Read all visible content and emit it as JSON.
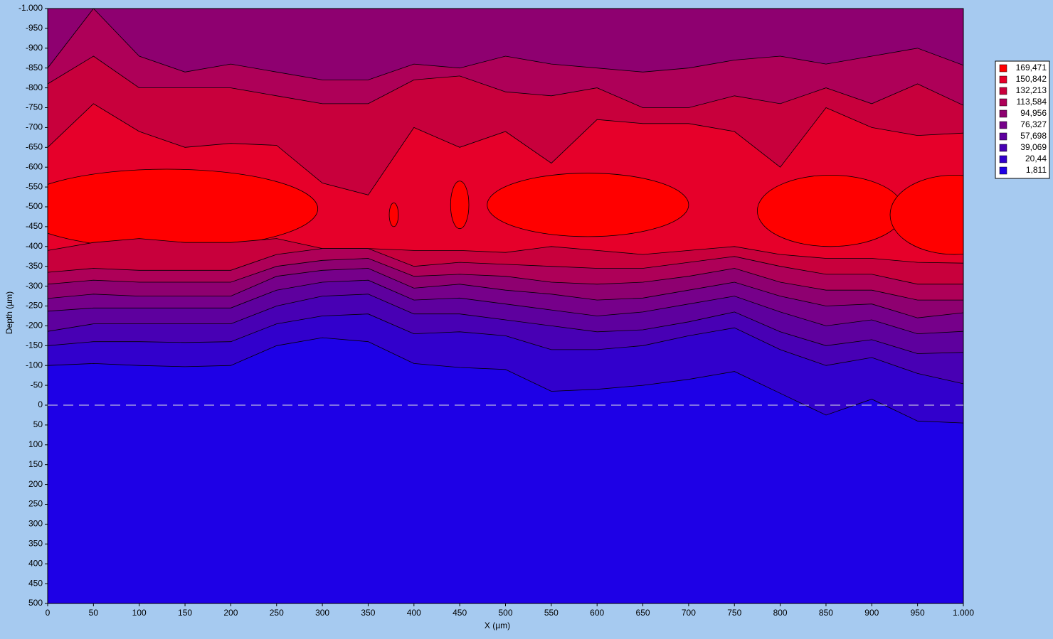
{
  "chart_data": {
    "type": "contour",
    "xlabel": "X (µm)",
    "ylabel": "Depth (µm)",
    "xlim": [
      0,
      1000
    ],
    "ylim": [
      -1000,
      500
    ],
    "xticks": [
      0,
      50,
      100,
      150,
      200,
      250,
      300,
      350,
      400,
      450,
      500,
      550,
      600,
      650,
      700,
      750,
      800,
      850,
      900,
      950,
      {
        "value": 1000,
        "label": "1.000"
      }
    ],
    "yticks": [
      {
        "value": -1000,
        "label": "-1.000"
      },
      -950,
      -900,
      -850,
      -800,
      -750,
      -700,
      -650,
      -600,
      -550,
      -500,
      -450,
      -400,
      -350,
      -300,
      -250,
      -200,
      -150,
      -100,
      -50,
      0,
      50,
      100,
      150,
      200,
      250,
      300,
      350,
      400,
      450,
      500
    ],
    "levels": [
      {
        "value": 169.471,
        "label": "169,471",
        "color": "#ff0000"
      },
      {
        "value": 150.842,
        "label": "150,842",
        "color": "#e6002a"
      },
      {
        "value": 132.213,
        "label": "132,213",
        "color": "#c8003c"
      },
      {
        "value": 113.584,
        "label": "113,584",
        "color": "#ae0058"
      },
      {
        "value": 94.956,
        "label": "94,956",
        "color": "#8e0070"
      },
      {
        "value": 76.327,
        "label": "76,327",
        "color": "#76008a"
      },
      {
        "value": 57.698,
        "label": "57,698",
        "color": "#5e009e"
      },
      {
        "value": 39.069,
        "label": "39,069",
        "color": "#4800b4"
      },
      {
        "value": 20.44,
        "label": "20,44",
        "color": "#3200cc"
      },
      {
        "value": 1.811,
        "label": "1,811",
        "color": "#1e00e6"
      }
    ],
    "background_band": 94.956,
    "x": [
      0,
      50,
      100,
      150,
      200,
      250,
      300,
      350,
      400,
      450,
      500,
      550,
      600,
      650,
      700,
      750,
      800,
      850,
      900,
      950,
      1000
    ],
    "contours": [
      {
        "band": 113.584,
        "depth": [
          -850,
          -1000,
          -880,
          -840,
          -860,
          -840,
          -820,
          -820,
          -860,
          -850,
          -880,
          -860,
          -850,
          -840,
          -850,
          -870,
          -880,
          -860,
          -880,
          -900,
          -857
        ]
      },
      {
        "band": 132.213,
        "depth": [
          -810,
          -880,
          -800,
          -800,
          -800,
          -780,
          -760,
          -760,
          -820,
          -830,
          -790,
          -780,
          -800,
          -750,
          -750,
          -780,
          -760,
          -800,
          -760,
          -810,
          -756
        ]
      },
      {
        "band": 150.842,
        "depth": [
          -650,
          -760,
          -690,
          -650,
          -660,
          -655,
          -560,
          -530,
          -700,
          -650,
          -690,
          -610,
          -720,
          -710,
          -710,
          -690,
          -600,
          -750,
          -700,
          -680,
          -686
        ]
      },
      {
        "band": 132.213,
        "depth": [
          -390,
          -410,
          -420,
          -410,
          -410,
          -420,
          -395,
          -395,
          -390,
          -390,
          -385,
          -400,
          -390,
          -380,
          -390,
          -400,
          -380,
          -370,
          -370,
          -360,
          -358
        ]
      },
      {
        "band": 113.584,
        "depth": [
          -335,
          -345,
          -340,
          -340,
          -340,
          -380,
          -395,
          -395,
          -350,
          -360,
          -355,
          -350,
          -345,
          -345,
          -360,
          -375,
          -350,
          -330,
          -330,
          -305,
          -305
        ]
      },
      {
        "band": 94.956,
        "depth": [
          -305,
          -315,
          -310,
          -310,
          -310,
          -350,
          -365,
          -370,
          -325,
          -330,
          -325,
          -310,
          -305,
          -310,
          -325,
          -345,
          -310,
          -290,
          -290,
          -265,
          -265
        ]
      },
      {
        "band": 76.327,
        "depth": [
          -269,
          -280,
          -275,
          -275,
          -275,
          -325,
          -340,
          -345,
          -295,
          -305,
          -290,
          -280,
          -265,
          -270,
          -290,
          -310,
          -275,
          -250,
          -255,
          -220,
          -233
        ]
      },
      {
        "band": 57.698,
        "depth": [
          -237,
          -245,
          -245,
          -245,
          -245,
          -290,
          -310,
          -315,
          -265,
          -270,
          -255,
          -240,
          -225,
          -235,
          -255,
          -275,
          -235,
          -200,
          -215,
          -180,
          -186
        ]
      },
      {
        "band": 39.069,
        "depth": [
          -186,
          -205,
          -205,
          -205,
          -205,
          -250,
          -275,
          -280,
          -230,
          -230,
          -215,
          -200,
          -185,
          -190,
          -210,
          -235,
          -185,
          -150,
          -165,
          -130,
          -133
        ]
      },
      {
        "band": 20.44,
        "depth": [
          -150,
          -160,
          -160,
          -158,
          -160,
          -205,
          -225,
          -230,
          -180,
          -185,
          -175,
          -140,
          -140,
          -150,
          -175,
          -195,
          -140,
          -100,
          -120,
          -80,
          -54
        ]
      },
      {
        "band": 1.811,
        "depth": [
          -100,
          -105,
          -100,
          -97,
          -100,
          -150,
          -170,
          -160,
          -105,
          -95,
          -90,
          -35,
          -40,
          -50,
          -65,
          -85,
          -30,
          25,
          -15,
          40,
          45
        ]
      }
    ],
    "peaks": [
      {
        "band": 169.471,
        "x": 130,
        "y": -495,
        "rx": 165,
        "ry": 100
      },
      {
        "band": 169.471,
        "x": 590,
        "y": -505,
        "rx": 110,
        "ry": 80
      },
      {
        "band": 169.471,
        "x": 855,
        "y": -490,
        "rx": 80,
        "ry": 90
      },
      {
        "band": 169.471,
        "x": 990,
        "y": -480,
        "rx": 70,
        "ry": 100
      },
      {
        "band": 169.471,
        "x": 450,
        "y": -505,
        "rx": 10,
        "ry": 60
      },
      {
        "band": 169.471,
        "x": 378,
        "y": -480,
        "rx": 5,
        "ry": 30
      }
    ]
  }
}
